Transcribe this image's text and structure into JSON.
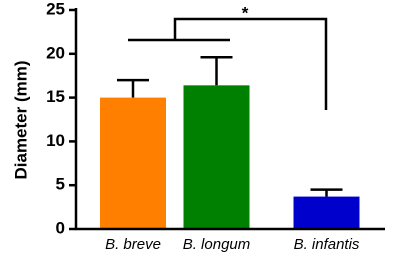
{
  "chart_data": {
    "type": "bar",
    "y_label": "Diameter (mm)",
    "categories": [
      "B. breve",
      "B. longum",
      "B. infantis"
    ],
    "values": [
      15,
      16.4,
      3.7
    ],
    "errors": [
      2,
      3.2,
      0.8
    ],
    "colors": [
      "#ff7f00",
      "#008000",
      "#0000cc"
    ],
    "ylim": [
      0,
      25
    ],
    "yticks": [
      0,
      5,
      10,
      15,
      20,
      25
    ],
    "significance": "*"
  }
}
